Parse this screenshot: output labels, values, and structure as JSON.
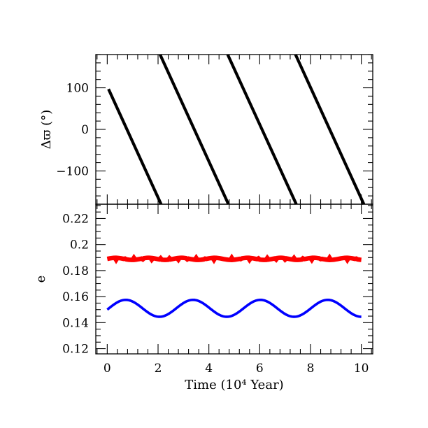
{
  "chart_data": [
    {
      "type": "line",
      "panel": "top",
      "ylabel": "Δϖ (°)",
      "xlim": [
        -0.45,
        10.45
      ],
      "ylim": [
        -180,
        180
      ],
      "x_ticks": [
        0,
        2,
        4,
        6,
        8,
        10
      ],
      "y_ticks": [
        -100,
        0,
        100
      ],
      "y_tick_labels": [
        "−100",
        "0",
        "100"
      ],
      "grid": false,
      "series": [
        {
          "color": "#000000",
          "segments": [
            {
              "x": [
                0.05,
                2.12
              ],
              "y": [
                97,
                -180
              ]
            },
            {
              "x": [
                2.08,
                4.77
              ],
              "y": [
                180,
                -180
              ]
            },
            {
              "x": [
                4.74,
                7.44
              ],
              "y": [
                180,
                -180
              ]
            },
            {
              "x": [
                7.41,
                10.1
              ],
              "y": [
                180,
                -180
              ]
            }
          ]
        }
      ]
    },
    {
      "type": "line",
      "panel": "bottom",
      "xlabel": "Time (10⁴ Year)",
      "ylabel": "e",
      "xlim": [
        -0.45,
        10.45
      ],
      "ylim": [
        0.116,
        0.231
      ],
      "x_ticks": [
        0,
        2,
        4,
        6,
        8,
        10
      ],
      "x_tick_labels": [
        "0",
        "2",
        "4",
        "6",
        "8",
        "10"
      ],
      "y_ticks": [
        0.12,
        0.14,
        0.16,
        0.18,
        0.2,
        0.22
      ],
      "y_tick_labels": [
        "0.12",
        "0.14",
        "0.16",
        "0.18",
        "0.2",
        "0.22"
      ],
      "grid": false,
      "series": [
        {
          "color": "#ff0000",
          "x": [
            0,
            10
          ],
          "y": [
            0.189,
            0.189
          ],
          "mean": 0.189,
          "amplitude": 0.0008
        },
        {
          "color": "#0000ff",
          "mean": 0.151,
          "amplitude": 0.0065,
          "period": 2.65,
          "x_range": [
            0,
            10
          ],
          "y_start": 0.15,
          "y_end": 0.145
        }
      ]
    }
  ]
}
